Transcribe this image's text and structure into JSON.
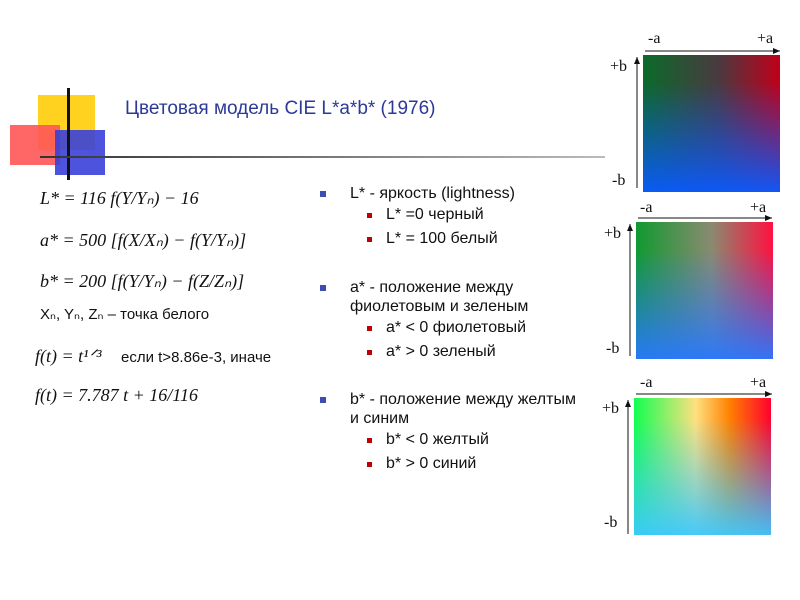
{
  "header": {
    "title": "Цветовая модель CIE L*a*b* (1976)"
  },
  "formulas": [
    "L* = 116 f(Y/Yₙ) − 16",
    "a* = 500 [f(X/Xₙ) − f(Y/Yₙ)]",
    "b* = 200 [f(Y/Yₙ) − f(Z/Zₙ)]"
  ],
  "white_point": "Xₙ, Yₙ, Zₙ – точка белого",
  "ft": {
    "formula1": "f(t) = t¹ᐟ³",
    "condition": "если t>8.86e-3, иначе",
    "formula2": "f(t) = 7.787 t + 16/116"
  },
  "bullets": [
    {
      "text": "L* - яркость (lightness)",
      "items": [
        "L* =0 черный",
        "L* = 100 белый"
      ]
    },
    {
      "text": "a* - положение между фиолетовым и зеленым",
      "items": [
        "a* < 0 фиолетовый",
        "a* > 0 зеленый"
      ]
    },
    {
      "text": "b* - положение между желтым и синим",
      "items": [
        "b* < 0 желтый",
        "b* > 0 синий"
      ]
    }
  ],
  "color_squares": [
    {
      "minus_a": "-a",
      "plus_a": "+a",
      "plus_b": "+b",
      "minus_b": "-b"
    },
    {
      "minus_a": "-a",
      "plus_a": "+a",
      "plus_b": "+b",
      "minus_b": "-b"
    },
    {
      "minus_a": "-a",
      "plus_a": "+a",
      "plus_b": "+b",
      "minus_b": "-b"
    }
  ]
}
